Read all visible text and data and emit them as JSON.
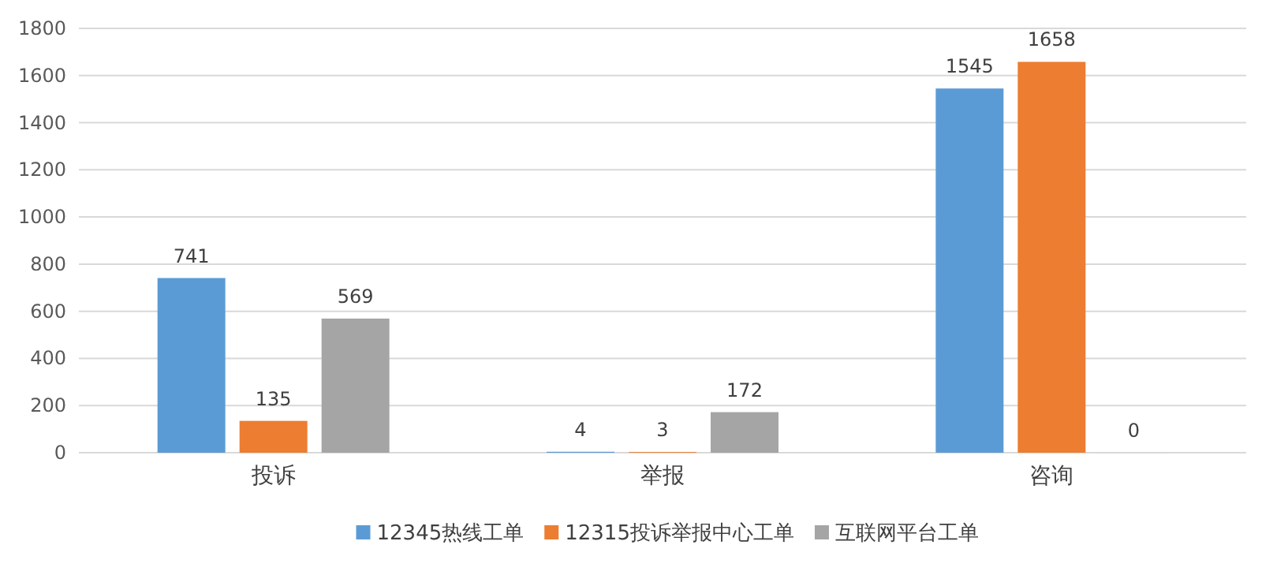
{
  "chart_data": {
    "type": "bar",
    "categories": [
      "投诉",
      "举报",
      "咨询"
    ],
    "series": [
      {
        "name": "12345热线工单",
        "color": "#5b9bd5",
        "values": [
          741,
          4,
          1545
        ]
      },
      {
        "name": "12315投诉举报中心工单",
        "color": "#ed7d31",
        "values": [
          135,
          3,
          1658
        ]
      },
      {
        "name": "互联网平台工单",
        "color": "#a5a5a5",
        "values": [
          569,
          172,
          0
        ]
      }
    ],
    "ylim": [
      0,
      1800
    ],
    "yticks": [
      0,
      200,
      400,
      600,
      800,
      1000,
      1200,
      1400,
      1600,
      1800
    ],
    "grid": "y",
    "legend": "bottom",
    "data_labels": true
  }
}
